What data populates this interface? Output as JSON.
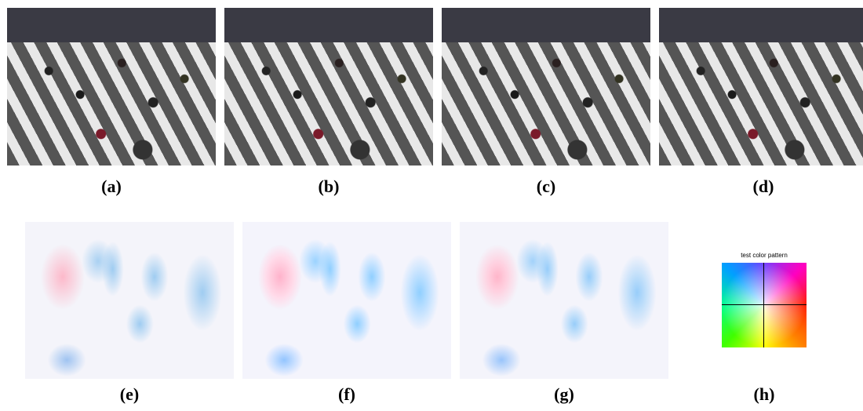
{
  "figure": {
    "top_labels": [
      "(a)",
      "(b)",
      "(c)",
      "(d)"
    ],
    "bottom_labels": [
      "(e)",
      "(f)",
      "(g)",
      "(h)"
    ],
    "color_pattern_title": "test color pattern"
  }
}
